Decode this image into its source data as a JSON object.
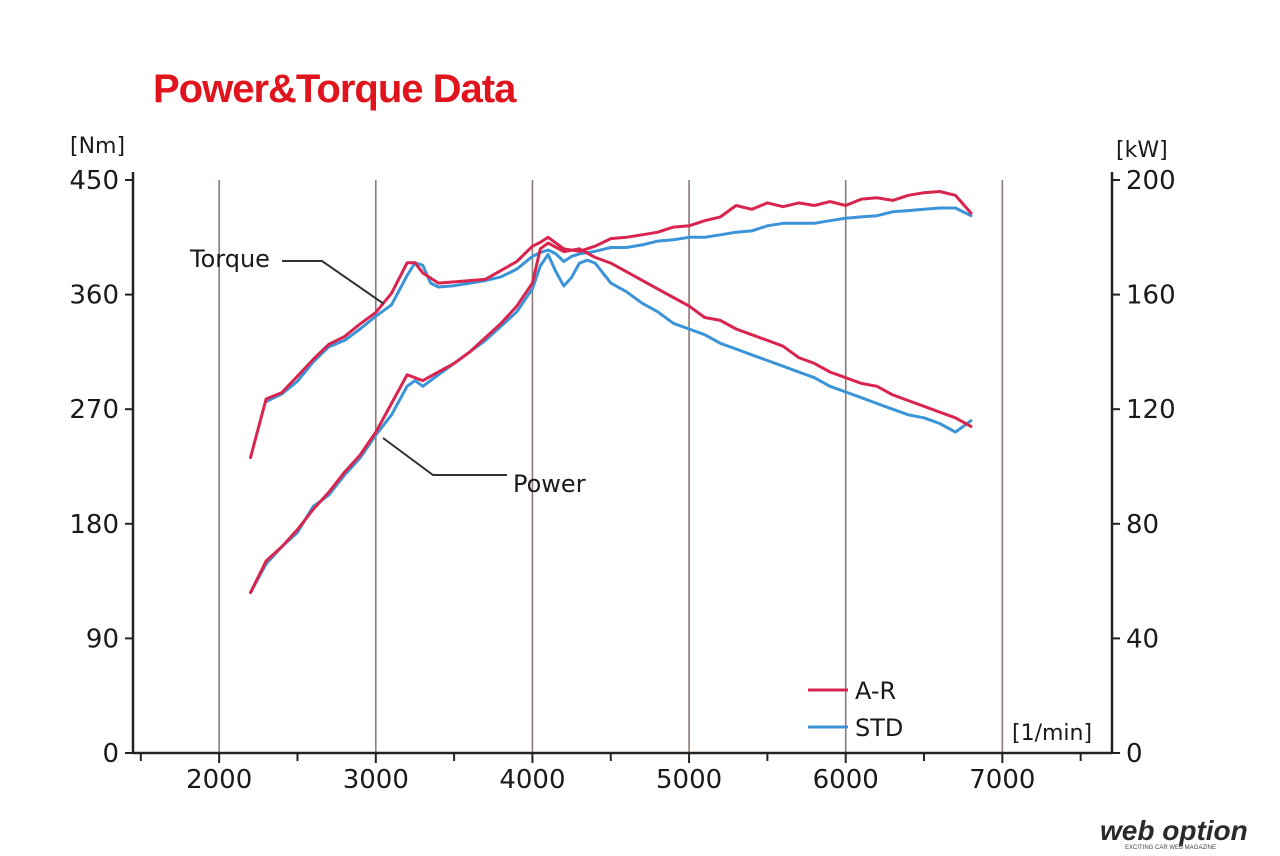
{
  "chart_data": {
    "type": "line",
    "title": "Power&Torque Data",
    "x_unit": "[1/min]",
    "y_left_unit": "[Nm]",
    "y_right_unit": "[kW]",
    "x_ticks": [
      "2000",
      "3000",
      "4000",
      "5000",
      "6000",
      "7000"
    ],
    "y_left_ticks": [
      "0",
      "90",
      "180",
      "270",
      "360",
      "450"
    ],
    "y_right_ticks": [
      "0",
      "40",
      "80",
      "120",
      "160",
      "200"
    ],
    "xlim": [
      1450,
      7700
    ],
    "ylim_left": [
      0,
      450
    ],
    "ylim_right": [
      0,
      200
    ],
    "grid_vertical": true,
    "annotations": [
      {
        "text": "Torque",
        "series": "torque"
      },
      {
        "text": "Power",
        "series": "power"
      }
    ],
    "legend": {
      "placement": "bottom-right",
      "entries": [
        "A-R",
        "STD"
      ]
    },
    "series": [
      {
        "name": "A-R",
        "quantity": "torque",
        "color": "#d9244d",
        "x": [
          2200,
          2300,
          2400,
          2500,
          2600,
          2700,
          2800,
          2900,
          3000,
          3100,
          3200,
          3250,
          3300,
          3400,
          3500,
          3600,
          3700,
          3800,
          3900,
          4000,
          4050,
          4100,
          4200,
          4300,
          4400,
          4500,
          4600,
          4700,
          4800,
          4900,
          5000,
          5100,
          5200,
          5300,
          5400,
          5500,
          5600,
          5700,
          5800,
          5900,
          6000,
          6100,
          6200,
          6300,
          6400,
          6500,
          6600,
          6700,
          6800
        ],
        "y": [
          232,
          278,
          283,
          296,
          309,
          321,
          327,
          337,
          346,
          361,
          385,
          385,
          377,
          369,
          370,
          371,
          372,
          379,
          386,
          398,
          401,
          405,
          396,
          394,
          398,
          404,
          405,
          407,
          409,
          413,
          414,
          418,
          421,
          430,
          427,
          432,
          429,
          432,
          430,
          433,
          430,
          435,
          436,
          434,
          438,
          440,
          441,
          438,
          424
        ]
      },
      {
        "name": "STD",
        "quantity": "torque",
        "color": "#3c94d8",
        "x": [
          2300,
          2400,
          2500,
          2600,
          2700,
          2800,
          2900,
          3000,
          3100,
          3200,
          3250,
          3300,
          3350,
          3400,
          3500,
          3600,
          3700,
          3800,
          3900,
          4000,
          4050,
          4100,
          4150,
          4200,
          4250,
          4300,
          4350,
          4400,
          4500,
          4600,
          4700,
          4800,
          4900,
          5000,
          5100,
          5200,
          5300,
          5400,
          5500,
          5600,
          5700,
          5800,
          5900,
          6000,
          6100,
          6200,
          6300,
          6400,
          6500,
          6600,
          6700,
          6800
        ],
        "y": [
          276,
          282,
          292,
          307,
          319,
          324,
          333,
          343,
          352,
          375,
          385,
          383,
          369,
          366,
          367,
          369,
          371,
          374,
          380,
          390,
          393,
          395,
          392,
          386,
          390,
          392,
          393,
          394,
          397,
          397,
          399,
          402,
          403,
          405,
          405,
          407,
          409,
          410,
          414,
          416,
          416,
          416,
          418,
          420,
          421,
          422,
          425,
          426,
          427,
          428,
          428,
          422
        ]
      },
      {
        "name": "A-R",
        "quantity": "power",
        "color": "#d9244d",
        "x": [
          2200,
          2300,
          2400,
          2500,
          2600,
          2700,
          2800,
          2900,
          3000,
          3100,
          3200,
          3250,
          3300,
          3400,
          3500,
          3600,
          3700,
          3800,
          3900,
          4000,
          4050,
          4100,
          4200,
          4300,
          4400,
          4500,
          4600,
          4700,
          4800,
          4900,
          5000,
          5100,
          5200,
          5300,
          5400,
          5500,
          5600,
          5700,
          5800,
          5900,
          6000,
          6100,
          6200,
          6300,
          6400,
          6500,
          6600,
          6700,
          6800
        ],
        "y": [
          56,
          67,
          72,
          78,
          85,
          91,
          98,
          104,
          112,
          122,
          132,
          131,
          130,
          133,
          136,
          140,
          145,
          150,
          156,
          164,
          176,
          178,
          175,
          176,
          173,
          171,
          168,
          165,
          162,
          159,
          156,
          152,
          151,
          148,
          146,
          144,
          142,
          138,
          136,
          133,
          131,
          129,
          128,
          125,
          123,
          121,
          119,
          117,
          114
        ]
      },
      {
        "name": "STD",
        "quantity": "power",
        "color": "#3c94d8",
        "x": [
          2200,
          2300,
          2400,
          2500,
          2600,
          2700,
          2800,
          2900,
          3000,
          3100,
          3200,
          3250,
          3300,
          3400,
          3500,
          3600,
          3700,
          3800,
          3900,
          4000,
          4050,
          4100,
          4150,
          4200,
          4250,
          4300,
          4350,
          4400,
          4500,
          4600,
          4700,
          4800,
          4900,
          5000,
          5100,
          5200,
          5300,
          5400,
          5500,
          5600,
          5700,
          5800,
          5900,
          6000,
          6100,
          6200,
          6300,
          6400,
          6500,
          6600,
          6700,
          6800
        ],
        "y": [
          56,
          66,
          72,
          77,
          86,
          90,
          97,
          103,
          111,
          118,
          128,
          130,
          128,
          132,
          136,
          140,
          144,
          149,
          154,
          162,
          170,
          174,
          168,
          163,
          166,
          171,
          172,
          171,
          164,
          161,
          157,
          154,
          150,
          148,
          146,
          143,
          141,
          139,
          137,
          135,
          133,
          131,
          128,
          126,
          124,
          122,
          120,
          118,
          117,
          115,
          112,
          116
        ]
      }
    ]
  },
  "watermark": {
    "text": "web option",
    "tagline": "EXCITING CAR WEB MAGAZINE"
  }
}
